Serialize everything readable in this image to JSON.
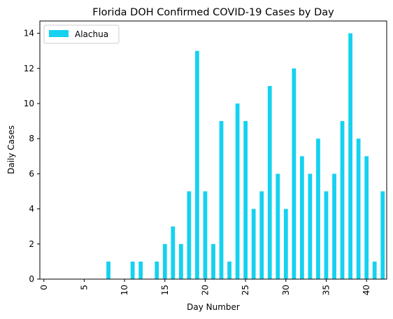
{
  "chart_data": {
    "type": "bar",
    "title": "Florida DOH Confirmed COVID-19 Cases by Day",
    "xlabel": "Day Number",
    "ylabel": "Daily Cases",
    "x": [
      0,
      1,
      2,
      3,
      4,
      5,
      6,
      7,
      8,
      9,
      10,
      11,
      12,
      13,
      14,
      15,
      16,
      17,
      18,
      19,
      20,
      21,
      22,
      23,
      24,
      25,
      26,
      27,
      28,
      29,
      30,
      31,
      32,
      33,
      34,
      35,
      36,
      37,
      38,
      39,
      40,
      41,
      42
    ],
    "series": [
      {
        "name": "Alachua",
        "color": "#14d2f0",
        "values": [
          0,
          0,
          0,
          0,
          0,
          0,
          0,
          0,
          1,
          0,
          0,
          1,
          1,
          0,
          1,
          2,
          3,
          2,
          5,
          13,
          5,
          2,
          9,
          1,
          10,
          9,
          4,
          5,
          11,
          6,
          4,
          12,
          7,
          6,
          8,
          5,
          6,
          9,
          14,
          8,
          7,
          1,
          5
        ]
      }
    ],
    "x_ticks": [
      "0",
      "5",
      "10",
      "15",
      "20",
      "25",
      "30",
      "35",
      "40"
    ],
    "y_ticks": [
      "0",
      "2",
      "4",
      "6",
      "8",
      "10",
      "12",
      "14"
    ],
    "ylim": [
      0,
      14.7
    ],
    "grid": false,
    "legend": "top-left"
  }
}
